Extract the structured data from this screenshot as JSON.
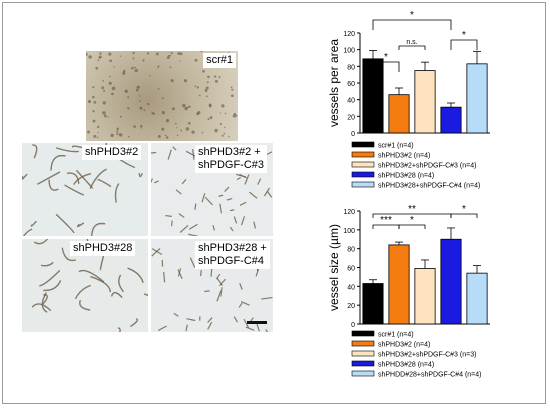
{
  "micrographs": [
    {
      "label": "scr#1"
    },
    {
      "label": "shPHD3#2"
    },
    {
      "label": "shPHD3#2 +\nshPDGF-C#3"
    },
    {
      "label": "shPHD3#28"
    },
    {
      "label": "shPHD3#28 +\nshPDGF-C#4"
    }
  ],
  "colors": {
    "black": "#000000",
    "orange": "#f47c10",
    "cream": "#fde3bf",
    "blue": "#1a1ae0",
    "lightblue": "#b7dcf7"
  },
  "chart_data": [
    {
      "type": "bar",
      "ylabel": "vessels per area",
      "ylim": [
        0,
        120
      ],
      "yticks": [
        "0",
        "20",
        "40",
        "60",
        "80",
        "100",
        "120"
      ],
      "categories": [
        "scr#1",
        "shPHD3#2",
        "shPHD3#2+shPDGF-C#3",
        "shPHD3#28",
        "shPHD3#28+shPDGF-C#4"
      ],
      "values": [
        89,
        46,
        75,
        31,
        83
      ],
      "errors": [
        10,
        8,
        10,
        5,
        15
      ],
      "bar_colors": [
        "#000000",
        "#f47c10",
        "#fde3bf",
        "#1a1ae0",
        "#b7dcf7"
      ],
      "significance": [
        "*",
        "n.s.",
        "*",
        "*"
      ],
      "legend": [
        "scr#1 (n=4)",
        "shPHD3#2 (n=4)",
        "shPHD3#2+shPDGF-C#3 (n=4)",
        "shPHD3#28 (n=4)",
        "shPHD3#28+shPDGF-C#4 (n=4)"
      ],
      "legend_placement": "bottom"
    },
    {
      "type": "bar",
      "ylabel": "vessel size (µm)",
      "ylim": [
        0,
        120
      ],
      "yticks": [
        "0",
        "20",
        "40",
        "60",
        "80",
        "100",
        "120"
      ],
      "categories": [
        "scr#1",
        "shPHD3#2",
        "shPHD3#2+shPDGF-C#3",
        "shPHD3#28",
        "shPHDD#28+shPDGF-C#4"
      ],
      "values": [
        43,
        84,
        59,
        90,
        54
      ],
      "errors": [
        4,
        3,
        9,
        12,
        8
      ],
      "bar_colors": [
        "#000000",
        "#f47c10",
        "#fde3bf",
        "#1a1ae0",
        "#b7dcf7"
      ],
      "significance": [
        "***",
        "*",
        "**",
        "*"
      ],
      "legend": [
        "scr#1 (n=4)",
        "shPHD3#2 (n=4)",
        "shPHD3#2+shPDGF-C#3 (n=3)",
        "shPHD3#28 (n=4)",
        "shPHDD#28+shPDGF-C#4 (n=4)"
      ],
      "legend_placement": "bottom"
    }
  ]
}
